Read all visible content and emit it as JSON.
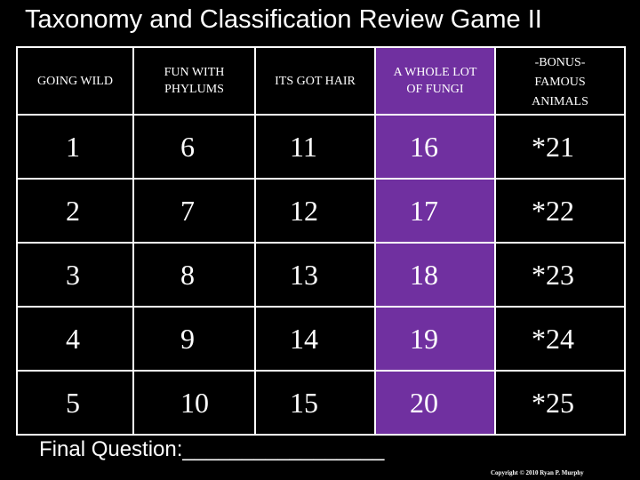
{
  "title": "Taxonomy and Classification Review Game II",
  "board": {
    "categories": [
      {
        "line1": "GOING WILD",
        "line2": "",
        "line3": ""
      },
      {
        "line1": "FUN WITH",
        "line2": "PHYLUMS",
        "line3": ""
      },
      {
        "line1": "ITS GOT HAIR",
        "line2": "",
        "line3": ""
      },
      {
        "line1": "A WHOLE LOT",
        "line2": "OF FUNGI",
        "line3": ""
      },
      {
        "line1": "-BONUS-",
        "line2": "FAMOUS",
        "line3": "ANIMALS"
      }
    ],
    "rows": [
      [
        "1",
        "6",
        "11",
        "16",
        "*21"
      ],
      [
        "2",
        "7",
        "12",
        "17",
        "*22"
      ],
      [
        "3",
        "8",
        "13",
        "18",
        "*23"
      ],
      [
        "4",
        "9",
        "14",
        "19",
        "*24"
      ],
      [
        "5",
        "10",
        "15",
        "20",
        "*25"
      ]
    ],
    "highlight_column_color": "#7030a0",
    "border_color": "#ffffff",
    "background_color": "#000000"
  },
  "final_question": "Final Question:_________________",
  "copyright": "Copyright © 2010 Ryan P. Murphy"
}
